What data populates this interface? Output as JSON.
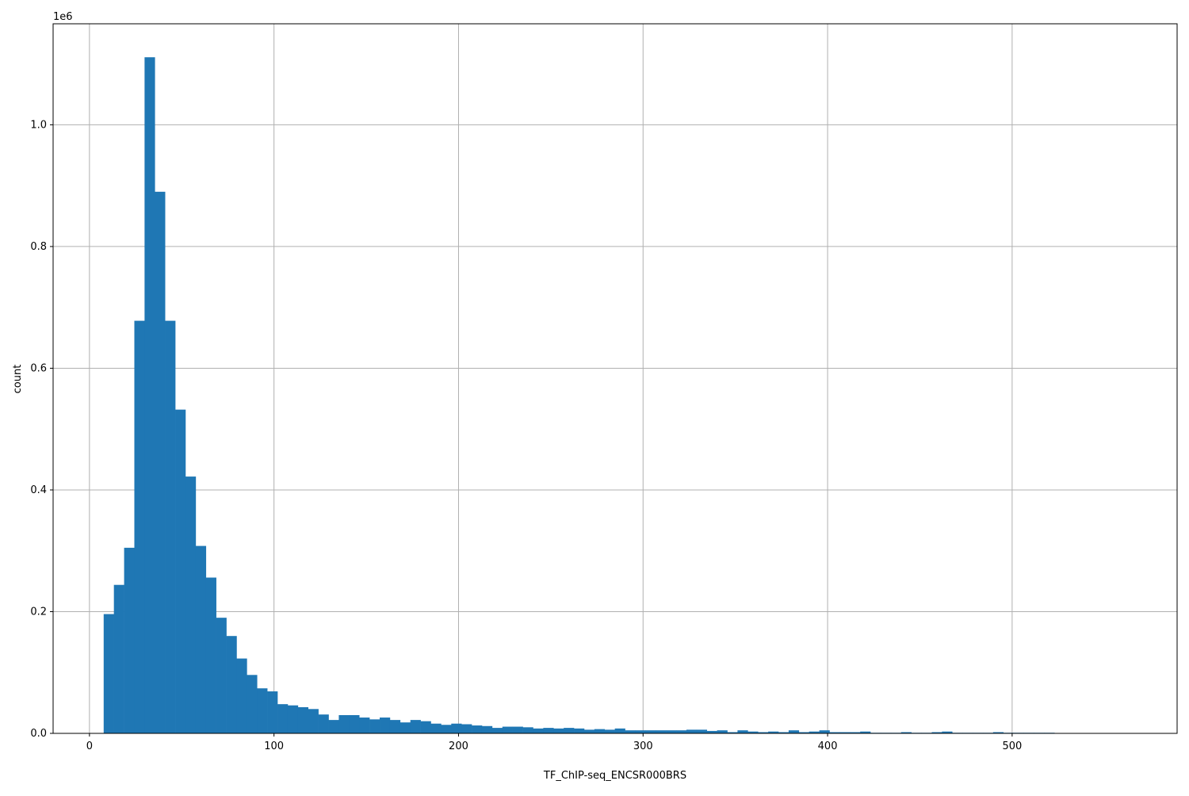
{
  "chart_data": {
    "type": "bar",
    "subtype": "histogram",
    "title": "",
    "xlabel": "TF_ChIP-seq_ENCSR000BRS",
    "ylabel": "count",
    "y_offset_label": "1e6",
    "bin_start": 7.7,
    "bin_width": 5.54,
    "values_1e6": [
      0.196,
      0.244,
      0.305,
      0.678,
      1.111,
      0.89,
      0.678,
      0.532,
      0.422,
      0.308,
      0.256,
      0.19,
      0.16,
      0.123,
      0.096,
      0.074,
      0.069,
      0.048,
      0.046,
      0.043,
      0.04,
      0.031,
      0.022,
      0.03,
      0.03,
      0.026,
      0.023,
      0.026,
      0.022,
      0.018,
      0.022,
      0.02,
      0.016,
      0.014,
      0.016,
      0.015,
      0.013,
      0.012,
      0.009,
      0.011,
      0.011,
      0.01,
      0.008,
      0.009,
      0.008,
      0.009,
      0.008,
      0.006,
      0.007,
      0.006,
      0.008,
      0.005,
      0.005,
      0.005,
      0.005,
      0.005,
      0.005,
      0.006,
      0.006,
      0.004,
      0.005,
      0.002,
      0.005,
      0.003,
      0.002,
      0.003,
      0.002,
      0.005,
      0.002,
      0.003,
      0.005,
      0.002,
      0.002,
      0.002,
      0.003,
      0.001,
      0.001,
      0.001,
      0.002,
      0.001,
      0.001,
      0.002,
      0.003,
      0.001,
      0.001,
      0.001,
      0.001,
      0.002,
      0.001,
      0.001,
      0.001,
      0.001,
      0.001,
      0.0005,
      0.0005,
      0.0005,
      0.0005,
      0.0005,
      0.0005,
      0.0005
    ],
    "xlim": [
      -19.7,
      589.4
    ],
    "ylim": [
      0,
      1.166
    ],
    "xticks": [
      0,
      100,
      200,
      300,
      400,
      500
    ],
    "xtick_labels": [
      "0",
      "100",
      "200",
      "300",
      "400",
      "500"
    ],
    "yticks": [
      0,
      0.2,
      0.4,
      0.6,
      0.8,
      1.0
    ],
    "ytick_labels": [
      "0.0",
      "0.2",
      "0.4",
      "0.6",
      "0.8",
      "1.0"
    ],
    "grid": true,
    "bar_color": "#1f77b4",
    "grid_color": "#b0b0b0"
  }
}
